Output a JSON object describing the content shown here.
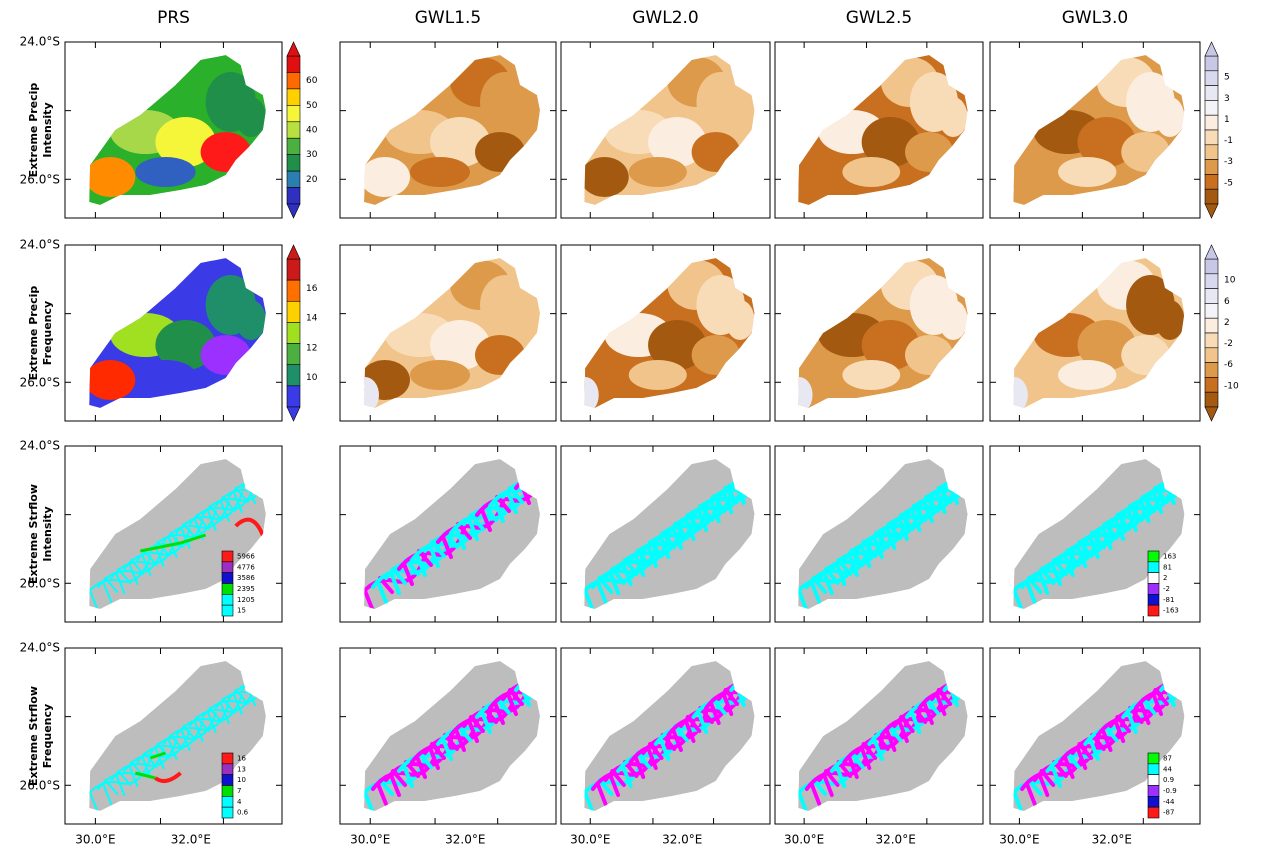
{
  "columns": [
    "PRS",
    "GWL1.5",
    "GWL2.0",
    "GWL2.5",
    "GWL3.0"
  ],
  "rows": [
    {
      "label": [
        "Extreme Precip",
        "Intensity"
      ],
      "prs_scale": [
        60,
        50,
        40,
        30,
        20
      ],
      "change_scale": [
        5,
        3,
        1,
        -1,
        -3,
        -5
      ]
    },
    {
      "label": [
        "Extreme Precip",
        "Frequency"
      ],
      "prs_scale": [
        16,
        14,
        12,
        10
      ],
      "change_scale": [
        10,
        6,
        2,
        -2,
        -6,
        -10
      ]
    },
    {
      "label": [
        "Extreme Strflow",
        "Intensity"
      ],
      "prs_scale": [
        5966,
        4776,
        3586,
        2395,
        1205,
        15
      ],
      "change_scale": [
        163,
        81,
        2,
        -2,
        -81,
        -163
      ]
    },
    {
      "label": [
        "Extreme Strflow",
        "Frequency"
      ],
      "prs_scale": [
        16,
        13,
        10,
        7,
        4,
        0.6
      ],
      "change_scale": [
        87,
        44,
        0.9,
        -0.9,
        -44,
        -87
      ]
    }
  ],
  "y_axis_labels": [
    "24.0°S",
    "26.0°S"
  ],
  "x_axis_labels": [
    "30.0°E",
    "32.0°E"
  ]
}
